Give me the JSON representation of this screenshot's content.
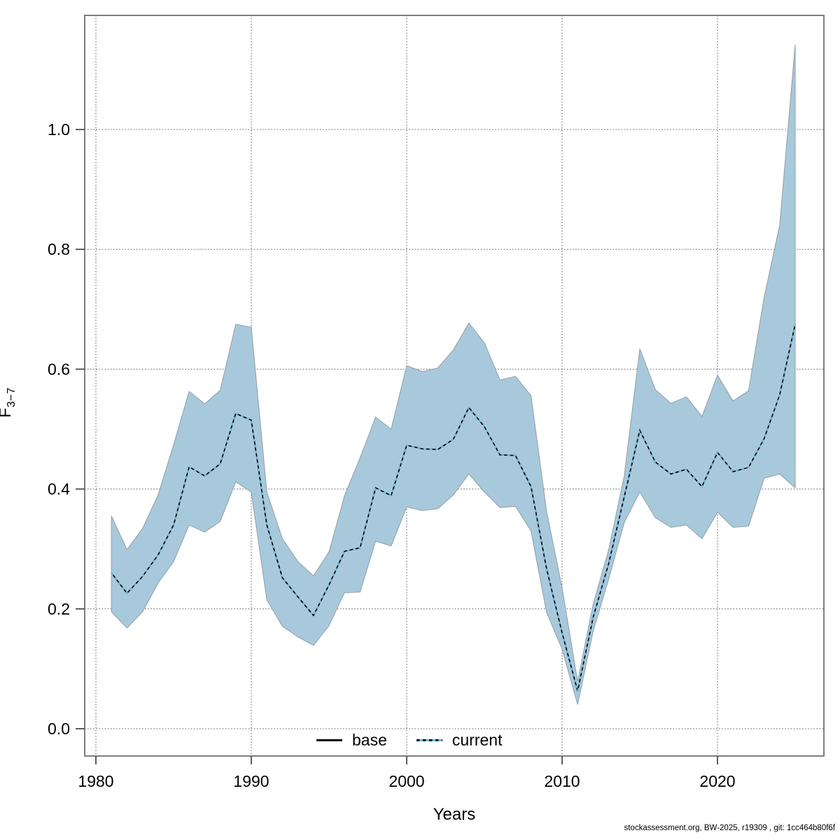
{
  "footer": {
    "credit": "stockassessment.org, BW-2025, r19309 , git: 1cc464b80f6f"
  },
  "chart_data": {
    "type": "line",
    "subtype": "line-with-confidence-band",
    "title": "",
    "xlabel": "Years",
    "ylabel_main": "F",
    "ylabel_sub": "3−7",
    "x_ticks": [
      1980,
      1990,
      2000,
      2010,
      2020
    ],
    "x_tick_labels": [
      "1980",
      "1990",
      "2000",
      "2010",
      "2020"
    ],
    "y_ticks": [
      0.0,
      0.2,
      0.4,
      0.6,
      0.8,
      1.0
    ],
    "y_tick_labels": [
      "0.0",
      "0.2",
      "0.4",
      "0.6",
      "0.8",
      "1.0"
    ],
    "xlim": [
      1979.3,
      2026.8
    ],
    "ylim": [
      -0.046,
      1.19
    ],
    "grid": "dotted",
    "legend_position": "bottom-center-inside",
    "legend": [
      {
        "label": "base",
        "style": "solid",
        "color": "#000000"
      },
      {
        "label": "current",
        "style": "dotted",
        "color": "#67BFE7"
      }
    ],
    "colors": {
      "band_fill": "#A8C9DB",
      "band_edge": "#8F9EA8",
      "base_line": "#000000",
      "current_line": "#67BFE7",
      "grid": "#555555",
      "border": "#7F7F7F",
      "tick": "#4D4D4D",
      "text": "#000000"
    },
    "note": "base series coincides with current (solid black line hidden under blue dotted line)",
    "series": {
      "years": [
        1981,
        1982,
        1983,
        1984,
        1985,
        1986,
        1987,
        1988,
        1989,
        1990,
        1991,
        1992,
        1993,
        1994,
        1995,
        1996,
        1997,
        1998,
        1999,
        2000,
        2001,
        2002,
        2003,
        2004,
        2005,
        2006,
        2007,
        2008,
        2009,
        2010,
        2011,
        2012,
        2013,
        2014,
        2015,
        2016,
        2017,
        2018,
        2019,
        2020,
        2021,
        2022,
        2023,
        2024,
        2025
      ],
      "current": [
        0.26,
        0.226,
        0.254,
        0.29,
        0.34,
        0.437,
        0.422,
        0.442,
        0.526,
        0.515,
        0.34,
        0.252,
        0.22,
        0.189,
        0.24,
        0.296,
        0.302,
        0.402,
        0.389,
        0.473,
        0.467,
        0.466,
        0.483,
        0.536,
        0.504,
        0.457,
        0.456,
        0.404,
        0.267,
        0.16,
        0.063,
        0.186,
        0.276,
        0.387,
        0.498,
        0.445,
        0.425,
        0.433,
        0.404,
        0.461,
        0.429,
        0.436,
        0.484,
        0.557,
        0.675
      ],
      "base": [
        0.26,
        0.226,
        0.254,
        0.29,
        0.34,
        0.437,
        0.422,
        0.442,
        0.526,
        0.515,
        0.34,
        0.252,
        0.22,
        0.189,
        0.24,
        0.296,
        0.302,
        0.402,
        0.389,
        0.473,
        0.467,
        0.466,
        0.483,
        0.536,
        0.504,
        0.457,
        0.456,
        0.404,
        0.267,
        0.16,
        0.063,
        0.186,
        0.276,
        0.387,
        0.498,
        0.445,
        0.425,
        0.433,
        0.404,
        0.461,
        0.429,
        0.436,
        0.484,
        0.557,
        0.675
      ],
      "ci_low": [
        0.195,
        0.168,
        0.195,
        0.243,
        0.279,
        0.34,
        0.328,
        0.346,
        0.412,
        0.395,
        0.215,
        0.171,
        0.153,
        0.139,
        0.172,
        0.227,
        0.228,
        0.313,
        0.305,
        0.37,
        0.364,
        0.367,
        0.39,
        0.425,
        0.395,
        0.369,
        0.371,
        0.33,
        0.194,
        0.133,
        0.04,
        0.163,
        0.25,
        0.344,
        0.395,
        0.352,
        0.336,
        0.34,
        0.317,
        0.361,
        0.336,
        0.338,
        0.418,
        0.425,
        0.402
      ],
      "ci_high": [
        0.355,
        0.299,
        0.334,
        0.39,
        0.474,
        0.563,
        0.542,
        0.565,
        0.675,
        0.67,
        0.395,
        0.317,
        0.279,
        0.255,
        0.295,
        0.389,
        0.452,
        0.52,
        0.5,
        0.606,
        0.596,
        0.602,
        0.632,
        0.677,
        0.644,
        0.582,
        0.588,
        0.556,
        0.363,
        0.235,
        0.079,
        0.208,
        0.299,
        0.422,
        0.634,
        0.566,
        0.543,
        0.554,
        0.521,
        0.59,
        0.547,
        0.564,
        0.72,
        0.84,
        1.142
      ]
    }
  }
}
